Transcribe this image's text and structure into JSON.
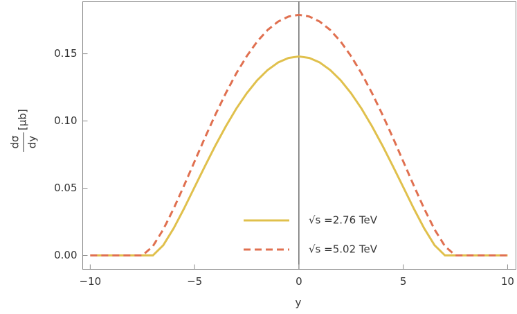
{
  "chart_data": {
    "type": "line",
    "x_label": "y",
    "y_label": {
      "numerator": "dσ",
      "denominator": "dy",
      "unit": "[μb]"
    },
    "x": [
      -10,
      -9.5,
      -9,
      -8.5,
      -8,
      -7.5,
      -7,
      -6.5,
      -6,
      -5.5,
      -5,
      -4.5,
      -4,
      -3.5,
      -3,
      -2.5,
      -2,
      -1.5,
      -1,
      -0.5,
      0,
      0.5,
      1,
      1.5,
      2,
      2.5,
      3,
      3.5,
      4,
      4.5,
      5,
      5.5,
      6,
      6.5,
      7,
      7.5,
      8,
      8.5,
      9,
      9.5,
      10
    ],
    "series": [
      {
        "name": "√s =2.76 TeV",
        "color": "#e0c04c",
        "dash": false,
        "values": [
          0,
          0,
          0,
          0,
          0,
          0,
          0,
          0.0076,
          0.0202,
          0.035,
          0.0508,
          0.0665,
          0.0818,
          0.0961,
          0.1092,
          0.1206,
          0.1303,
          0.1379,
          0.1435,
          0.1469,
          0.148,
          0.1469,
          0.1435,
          0.1379,
          0.1303,
          0.1206,
          0.1092,
          0.0961,
          0.0818,
          0.0665,
          0.0508,
          0.035,
          0.0202,
          0.0076,
          0,
          0,
          0,
          0,
          0,
          0,
          0
        ]
      },
      {
        "name": "√s =5.02 TeV",
        "color": "#e07050",
        "dash": true,
        "values": [
          0,
          0,
          0,
          0,
          0,
          0,
          0.0068,
          0.0193,
          0.0349,
          0.0521,
          0.0699,
          0.0877,
          0.1048,
          0.1208,
          0.1354,
          0.1482,
          0.1591,
          0.1677,
          0.1739,
          0.1777,
          0.179,
          0.1777,
          0.1739,
          0.1677,
          0.1591,
          0.1482,
          0.1354,
          0.1208,
          0.1048,
          0.0877,
          0.0699,
          0.0521,
          0.0349,
          0.0193,
          0.0068,
          0,
          0,
          0,
          0,
          0,
          0
        ]
      }
    ],
    "xlim": [
      -10.36,
      10.4
    ],
    "ylim": [
      -0.0103,
      0.1887
    ],
    "xticks": [
      {
        "value": -10,
        "label": "−10"
      },
      {
        "value": -5,
        "label": "−5"
      },
      0,
      5,
      10
    ],
    "yticks": [
      {
        "value": 0,
        "label": "0.00"
      },
      {
        "value": 0.05,
        "label": "0.05"
      },
      {
        "value": 0.1,
        "label": "0.10"
      },
      {
        "value": 0.15,
        "label": "0.15"
      }
    ],
    "grid": false,
    "legend": "lower center"
  }
}
